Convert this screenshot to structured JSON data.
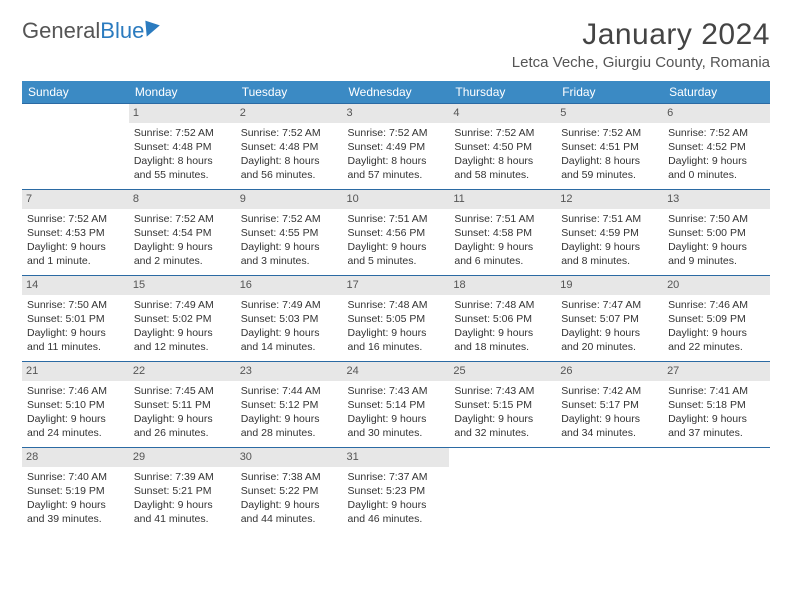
{
  "brand": {
    "part1": "General",
    "part2": "Blue"
  },
  "title": "January 2024",
  "location": "Letca Veche, Giurgiu County, Romania",
  "dow": [
    "Sunday",
    "Monday",
    "Tuesday",
    "Wednesday",
    "Thursday",
    "Friday",
    "Saturday"
  ],
  "colors": {
    "header_bg": "#3b8ac4",
    "row_divider": "#2b6aa3",
    "daynum_bg": "#e7e7e7",
    "brand_blue": "#2b7bbf"
  },
  "weeks": [
    [
      {
        "n": "",
        "sr": "",
        "ss": "",
        "dl1": "",
        "dl2": ""
      },
      {
        "n": "1",
        "sr": "Sunrise: 7:52 AM",
        "ss": "Sunset: 4:48 PM",
        "dl1": "Daylight: 8 hours",
        "dl2": "and 55 minutes."
      },
      {
        "n": "2",
        "sr": "Sunrise: 7:52 AM",
        "ss": "Sunset: 4:48 PM",
        "dl1": "Daylight: 8 hours",
        "dl2": "and 56 minutes."
      },
      {
        "n": "3",
        "sr": "Sunrise: 7:52 AM",
        "ss": "Sunset: 4:49 PM",
        "dl1": "Daylight: 8 hours",
        "dl2": "and 57 minutes."
      },
      {
        "n": "4",
        "sr": "Sunrise: 7:52 AM",
        "ss": "Sunset: 4:50 PM",
        "dl1": "Daylight: 8 hours",
        "dl2": "and 58 minutes."
      },
      {
        "n": "5",
        "sr": "Sunrise: 7:52 AM",
        "ss": "Sunset: 4:51 PM",
        "dl1": "Daylight: 8 hours",
        "dl2": "and 59 minutes."
      },
      {
        "n": "6",
        "sr": "Sunrise: 7:52 AM",
        "ss": "Sunset: 4:52 PM",
        "dl1": "Daylight: 9 hours",
        "dl2": "and 0 minutes."
      }
    ],
    [
      {
        "n": "7",
        "sr": "Sunrise: 7:52 AM",
        "ss": "Sunset: 4:53 PM",
        "dl1": "Daylight: 9 hours",
        "dl2": "and 1 minute."
      },
      {
        "n": "8",
        "sr": "Sunrise: 7:52 AM",
        "ss": "Sunset: 4:54 PM",
        "dl1": "Daylight: 9 hours",
        "dl2": "and 2 minutes."
      },
      {
        "n": "9",
        "sr": "Sunrise: 7:52 AM",
        "ss": "Sunset: 4:55 PM",
        "dl1": "Daylight: 9 hours",
        "dl2": "and 3 minutes."
      },
      {
        "n": "10",
        "sr": "Sunrise: 7:51 AM",
        "ss": "Sunset: 4:56 PM",
        "dl1": "Daylight: 9 hours",
        "dl2": "and 5 minutes."
      },
      {
        "n": "11",
        "sr": "Sunrise: 7:51 AM",
        "ss": "Sunset: 4:58 PM",
        "dl1": "Daylight: 9 hours",
        "dl2": "and 6 minutes."
      },
      {
        "n": "12",
        "sr": "Sunrise: 7:51 AM",
        "ss": "Sunset: 4:59 PM",
        "dl1": "Daylight: 9 hours",
        "dl2": "and 8 minutes."
      },
      {
        "n": "13",
        "sr": "Sunrise: 7:50 AM",
        "ss": "Sunset: 5:00 PM",
        "dl1": "Daylight: 9 hours",
        "dl2": "and 9 minutes."
      }
    ],
    [
      {
        "n": "14",
        "sr": "Sunrise: 7:50 AM",
        "ss": "Sunset: 5:01 PM",
        "dl1": "Daylight: 9 hours",
        "dl2": "and 11 minutes."
      },
      {
        "n": "15",
        "sr": "Sunrise: 7:49 AM",
        "ss": "Sunset: 5:02 PM",
        "dl1": "Daylight: 9 hours",
        "dl2": "and 12 minutes."
      },
      {
        "n": "16",
        "sr": "Sunrise: 7:49 AM",
        "ss": "Sunset: 5:03 PM",
        "dl1": "Daylight: 9 hours",
        "dl2": "and 14 minutes."
      },
      {
        "n": "17",
        "sr": "Sunrise: 7:48 AM",
        "ss": "Sunset: 5:05 PM",
        "dl1": "Daylight: 9 hours",
        "dl2": "and 16 minutes."
      },
      {
        "n": "18",
        "sr": "Sunrise: 7:48 AM",
        "ss": "Sunset: 5:06 PM",
        "dl1": "Daylight: 9 hours",
        "dl2": "and 18 minutes."
      },
      {
        "n": "19",
        "sr": "Sunrise: 7:47 AM",
        "ss": "Sunset: 5:07 PM",
        "dl1": "Daylight: 9 hours",
        "dl2": "and 20 minutes."
      },
      {
        "n": "20",
        "sr": "Sunrise: 7:46 AM",
        "ss": "Sunset: 5:09 PM",
        "dl1": "Daylight: 9 hours",
        "dl2": "and 22 minutes."
      }
    ],
    [
      {
        "n": "21",
        "sr": "Sunrise: 7:46 AM",
        "ss": "Sunset: 5:10 PM",
        "dl1": "Daylight: 9 hours",
        "dl2": "and 24 minutes."
      },
      {
        "n": "22",
        "sr": "Sunrise: 7:45 AM",
        "ss": "Sunset: 5:11 PM",
        "dl1": "Daylight: 9 hours",
        "dl2": "and 26 minutes."
      },
      {
        "n": "23",
        "sr": "Sunrise: 7:44 AM",
        "ss": "Sunset: 5:12 PM",
        "dl1": "Daylight: 9 hours",
        "dl2": "and 28 minutes."
      },
      {
        "n": "24",
        "sr": "Sunrise: 7:43 AM",
        "ss": "Sunset: 5:14 PM",
        "dl1": "Daylight: 9 hours",
        "dl2": "and 30 minutes."
      },
      {
        "n": "25",
        "sr": "Sunrise: 7:43 AM",
        "ss": "Sunset: 5:15 PM",
        "dl1": "Daylight: 9 hours",
        "dl2": "and 32 minutes."
      },
      {
        "n": "26",
        "sr": "Sunrise: 7:42 AM",
        "ss": "Sunset: 5:17 PM",
        "dl1": "Daylight: 9 hours",
        "dl2": "and 34 minutes."
      },
      {
        "n": "27",
        "sr": "Sunrise: 7:41 AM",
        "ss": "Sunset: 5:18 PM",
        "dl1": "Daylight: 9 hours",
        "dl2": "and 37 minutes."
      }
    ],
    [
      {
        "n": "28",
        "sr": "Sunrise: 7:40 AM",
        "ss": "Sunset: 5:19 PM",
        "dl1": "Daylight: 9 hours",
        "dl2": "and 39 minutes."
      },
      {
        "n": "29",
        "sr": "Sunrise: 7:39 AM",
        "ss": "Sunset: 5:21 PM",
        "dl1": "Daylight: 9 hours",
        "dl2": "and 41 minutes."
      },
      {
        "n": "30",
        "sr": "Sunrise: 7:38 AM",
        "ss": "Sunset: 5:22 PM",
        "dl1": "Daylight: 9 hours",
        "dl2": "and 44 minutes."
      },
      {
        "n": "31",
        "sr": "Sunrise: 7:37 AM",
        "ss": "Sunset: 5:23 PM",
        "dl1": "Daylight: 9 hours",
        "dl2": "and 46 minutes."
      },
      {
        "n": "",
        "sr": "",
        "ss": "",
        "dl1": "",
        "dl2": ""
      },
      {
        "n": "",
        "sr": "",
        "ss": "",
        "dl1": "",
        "dl2": ""
      },
      {
        "n": "",
        "sr": "",
        "ss": "",
        "dl1": "",
        "dl2": ""
      }
    ]
  ]
}
